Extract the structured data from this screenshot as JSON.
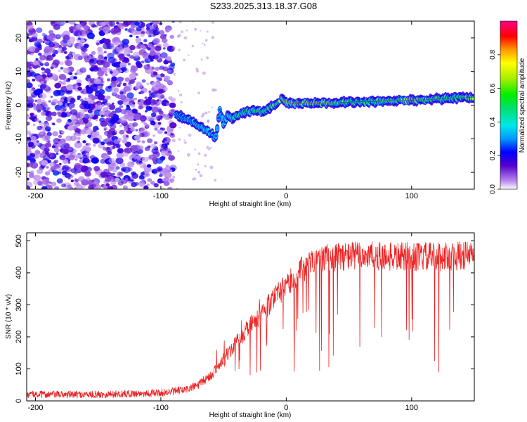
{
  "figure_title": "S233.2025.313.18.37.G08",
  "colors": {
    "snr_line": "#ee2222",
    "axis": "#000000"
  },
  "chart_data": [
    {
      "type": "heatmap",
      "title": "S233.2025.313.18.37.G08",
      "xlabel": "Height of straight line (km)",
      "ylabel": "Frequency (Hz)",
      "xlim": [
        -207,
        150
      ],
      "ylim": [
        -25,
        25
      ],
      "xticks": [
        -200,
        -100,
        0,
        100
      ],
      "xtick_labels": [
        "-200",
        "-100",
        "0",
        "100"
      ],
      "yticks": [
        -20,
        -10,
        0,
        10,
        20
      ],
      "ytick_labels": [
        "-20",
        "-10",
        "0",
        "10",
        "20"
      ],
      "grid": false,
      "colorbar": {
        "label": "Normalized spectral amplitude",
        "range": [
          0,
          1
        ],
        "ticks": [
          0.0,
          0.2,
          0.4,
          0.6,
          0.8
        ],
        "tick_labels": [
          "0.0",
          "0.2",
          "0.4",
          "0.6",
          "0.8"
        ]
      },
      "ridge": {
        "description": "dominant frequency track",
        "x": [
          -88,
          -80,
          -72,
          -66,
          -60,
          -56,
          -53,
          -50,
          -47,
          -43,
          -38,
          -32,
          -26,
          -20,
          -14,
          -8,
          -4,
          0,
          5,
          10,
          20,
          30,
          40,
          50,
          60,
          70,
          80,
          90,
          100,
          110,
          120,
          130,
          140,
          150
        ],
        "frequency": [
          -3,
          -4,
          -5.5,
          -7,
          -8.5,
          -9.5,
          -1,
          -6,
          -3,
          -4,
          -3,
          -2,
          -1.5,
          -2,
          -1,
          0.5,
          2,
          1,
          0.5,
          0.5,
          0.5,
          0.6,
          0.7,
          0.9,
          1,
          1.1,
          1.3,
          1.4,
          1.5,
          1.6,
          1.8,
          2.0,
          2.2,
          2.3
        ],
        "amplitude": [
          0.3,
          0.3,
          0.35,
          0.4,
          0.35,
          0.3,
          0.3,
          0.35,
          0.4,
          0.5,
          0.55,
          0.6,
          0.6,
          0.6,
          0.65,
          0.7,
          0.75,
          0.85,
          0.9,
          0.9,
          0.85,
          0.85,
          0.7,
          0.65,
          0.6,
          0.55,
          0.7,
          0.65,
          0.9,
          0.7,
          0.6,
          0.55,
          0.6,
          0.8
        ]
      },
      "noise_region": {
        "x_range": [
          -207,
          -90
        ],
        "max_amplitude": 0.25
      }
    },
    {
      "type": "line",
      "xlabel": "Height of straight line (km)",
      "ylabel": "SNR (10 * v/v)",
      "xlim": [
        -207,
        150
      ],
      "ylim": [
        0,
        525
      ],
      "xticks": [
        -200,
        -100,
        0,
        100
      ],
      "xtick_labels": [
        "-200",
        "-100",
        "0",
        "100"
      ],
      "yticks": [
        0,
        100,
        200,
        300,
        400,
        500
      ],
      "ytick_labels": [
        "0",
        "100",
        "200",
        "300",
        "400",
        "500"
      ],
      "grid": false,
      "series": [
        {
          "name": "SNR",
          "envelope_x": [
            -207,
            -150,
            -100,
            -80,
            -70,
            -60,
            -50,
            -40,
            -30,
            -20,
            -10,
            0,
            10,
            20,
            30,
            40,
            60,
            80,
            100,
            120,
            150
          ],
          "envelope_y": [
            20,
            20,
            25,
            35,
            50,
            80,
            130,
            180,
            230,
            270,
            320,
            360,
            400,
            430,
            445,
            450,
            455,
            450,
            450,
            450,
            455
          ],
          "noise_amplitude": 10,
          "dropout_min": 80
        }
      ]
    }
  ]
}
